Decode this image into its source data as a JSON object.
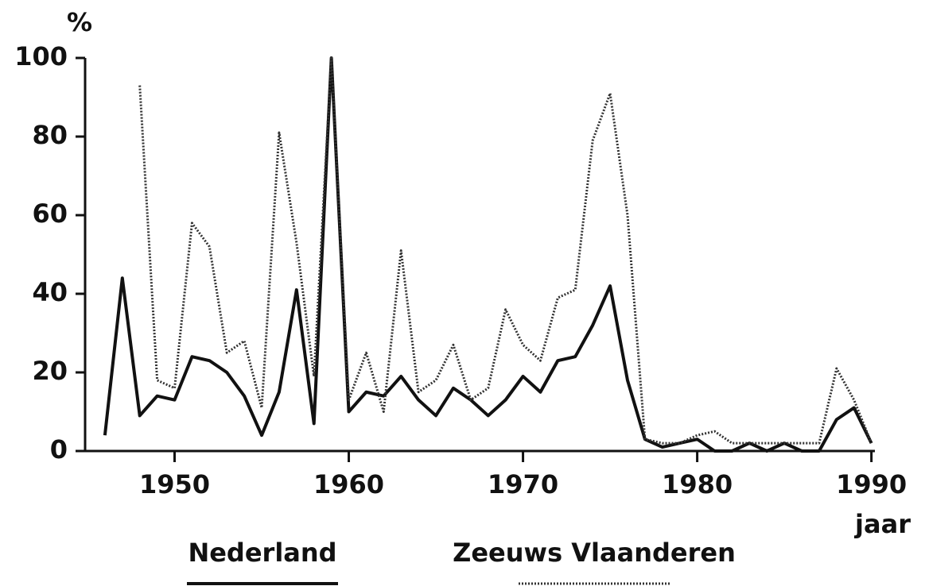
{
  "chart_data": {
    "type": "line",
    "y_label": "%",
    "x_label": "jaar",
    "x": [
      1946,
      1947,
      1948,
      1949,
      1950,
      1951,
      1952,
      1953,
      1954,
      1955,
      1956,
      1957,
      1958,
      1959,
      1960,
      1961,
      1962,
      1963,
      1964,
      1965,
      1966,
      1967,
      1968,
      1969,
      1970,
      1971,
      1972,
      1973,
      1974,
      1975,
      1976,
      1977,
      1978,
      1979,
      1980,
      1981,
      1982,
      1983,
      1984,
      1985,
      1986,
      1987,
      1988,
      1989,
      1990
    ],
    "series": [
      {
        "name": "Nederland",
        "color": "#111111",
        "style": "solid",
        "values": [
          4,
          44,
          9,
          14,
          13,
          24,
          23,
          20,
          14,
          4,
          15,
          41,
          7,
          100,
          10,
          15,
          14,
          19,
          13,
          9,
          16,
          13,
          9,
          13,
          19,
          15,
          23,
          24,
          32,
          42,
          18,
          3,
          1,
          2,
          3,
          0,
          0,
          2,
          0,
          2,
          0,
          0,
          8,
          11,
          2
        ]
      },
      {
        "name": "Zeeuws Vlaanderen",
        "color": "#333333",
        "style": "dotted",
        "values": [
          null,
          null,
          93,
          18,
          16,
          58,
          52,
          25,
          28,
          11,
          81,
          53,
          19,
          100,
          13,
          25,
          10,
          51,
          15,
          18,
          27,
          13,
          16,
          36,
          27,
          23,
          39,
          41,
          79,
          91,
          60,
          3,
          2,
          2,
          4,
          5,
          2,
          2,
          2,
          2,
          2,
          2,
          21,
          13,
          2
        ]
      }
    ],
    "xlim": [
      1945,
      1990.2
    ],
    "xticks": [
      1950,
      1960,
      1970,
      1980,
      1990
    ],
    "ylim": [
      0,
      100
    ],
    "yticks": [
      0,
      20,
      40,
      60,
      80,
      100
    ],
    "legend": "bottom"
  }
}
